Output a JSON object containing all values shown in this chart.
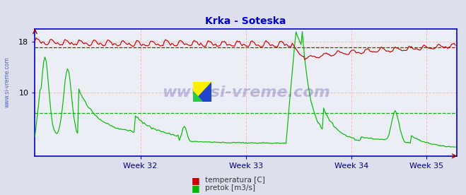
{
  "title": "Krka - Soteska",
  "title_color": "#0000cc",
  "bg_color": "#dde0ec",
  "plot_bg_color": "#eceef5",
  "xlabel_color": "#000080",
  "axis_color": "#0000cc",
  "watermark": "www.si-vreme.com",
  "watermark_color": "#3333aa",
  "side_text": "www.si-vreme.com",
  "legend": [
    {
      "label": "temperatura [C]",
      "color": "#cc0000"
    },
    {
      "label": "pretok [m3/s]",
      "color": "#00bb00"
    }
  ],
  "xlim": [
    0,
    336
  ],
  "ylim": [
    0,
    20
  ],
  "yticks": [
    10,
    18
  ],
  "xtick_labels": [
    "Week 32",
    "Week 33",
    "Week 34",
    "Week 35"
  ],
  "xtick_positions": [
    84,
    168,
    252,
    312
  ],
  "red_avg_line": 17.2,
  "green_avg_line": 6.8,
  "n_points": 336,
  "hgrid_color": "#ffbbbb",
  "vgrid_color": "#ffbbbb",
  "hgrid_green_color": "#88cc88"
}
